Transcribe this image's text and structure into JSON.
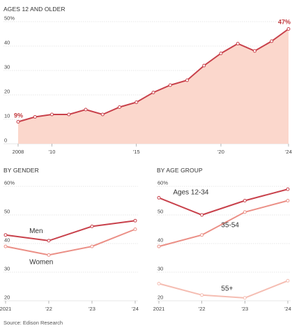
{
  "colors": {
    "dark_red": "#c8414b",
    "mid_salmon": "#eb8f86",
    "light_salmon": "#f5bdb2",
    "area_fill": "#fbd7cc",
    "grid": "#d0d0d0",
    "dark_label": "#c23a3e"
  },
  "source": "Source: Edison Research",
  "chart_data": [
    {
      "type": "area",
      "title": "AGES 12 AND OLDER",
      "ylim": [
        0,
        50
      ],
      "y_ticks": [
        "0",
        "10",
        "20",
        "30",
        "40",
        "50%"
      ],
      "x_ticks": [
        "2008",
        "'10",
        "'15",
        "'20",
        "'24"
      ],
      "x": [
        2008,
        2009,
        2010,
        2011,
        2012,
        2013,
        2014,
        2015,
        2016,
        2017,
        2018,
        2019,
        2020,
        2021,
        2022,
        2023,
        2024
      ],
      "series": [
        {
          "values": [
            9,
            11,
            12,
            12,
            14,
            12,
            15,
            17,
            21,
            24,
            26,
            32,
            37,
            41,
            38,
            42,
            47
          ]
        }
      ],
      "annotations": {
        "first": "9%",
        "last": "47%"
      }
    },
    {
      "type": "line",
      "title": "BY GENDER",
      "ylim": [
        20,
        60
      ],
      "y_ticks": [
        "20",
        "30",
        "40",
        "50",
        "60%"
      ],
      "x_ticks": [
        "2021",
        "'22",
        "'23",
        "'24"
      ],
      "x": [
        2021,
        2022,
        2023,
        2024
      ],
      "series": [
        {
          "name": "Men",
          "values": [
            43,
            41,
            46,
            48
          ]
        },
        {
          "name": "Women",
          "values": [
            39,
            36,
            39,
            45
          ]
        }
      ]
    },
    {
      "type": "line",
      "title": "BY AGE GROUP",
      "ylim": [
        20,
        60
      ],
      "y_ticks": [
        "20",
        "30",
        "40",
        "50",
        "60%"
      ],
      "x_ticks": [
        "2021",
        "'22",
        "'23",
        "'24"
      ],
      "x": [
        2021,
        2022,
        2023,
        2024
      ],
      "series": [
        {
          "name": "Ages 12-34",
          "values": [
            56,
            50,
            55,
            59
          ]
        },
        {
          "name": "35-54",
          "values": [
            39,
            43,
            51,
            55
          ]
        },
        {
          "name": "55+",
          "values": [
            26,
            22,
            21,
            27
          ]
        }
      ]
    }
  ]
}
